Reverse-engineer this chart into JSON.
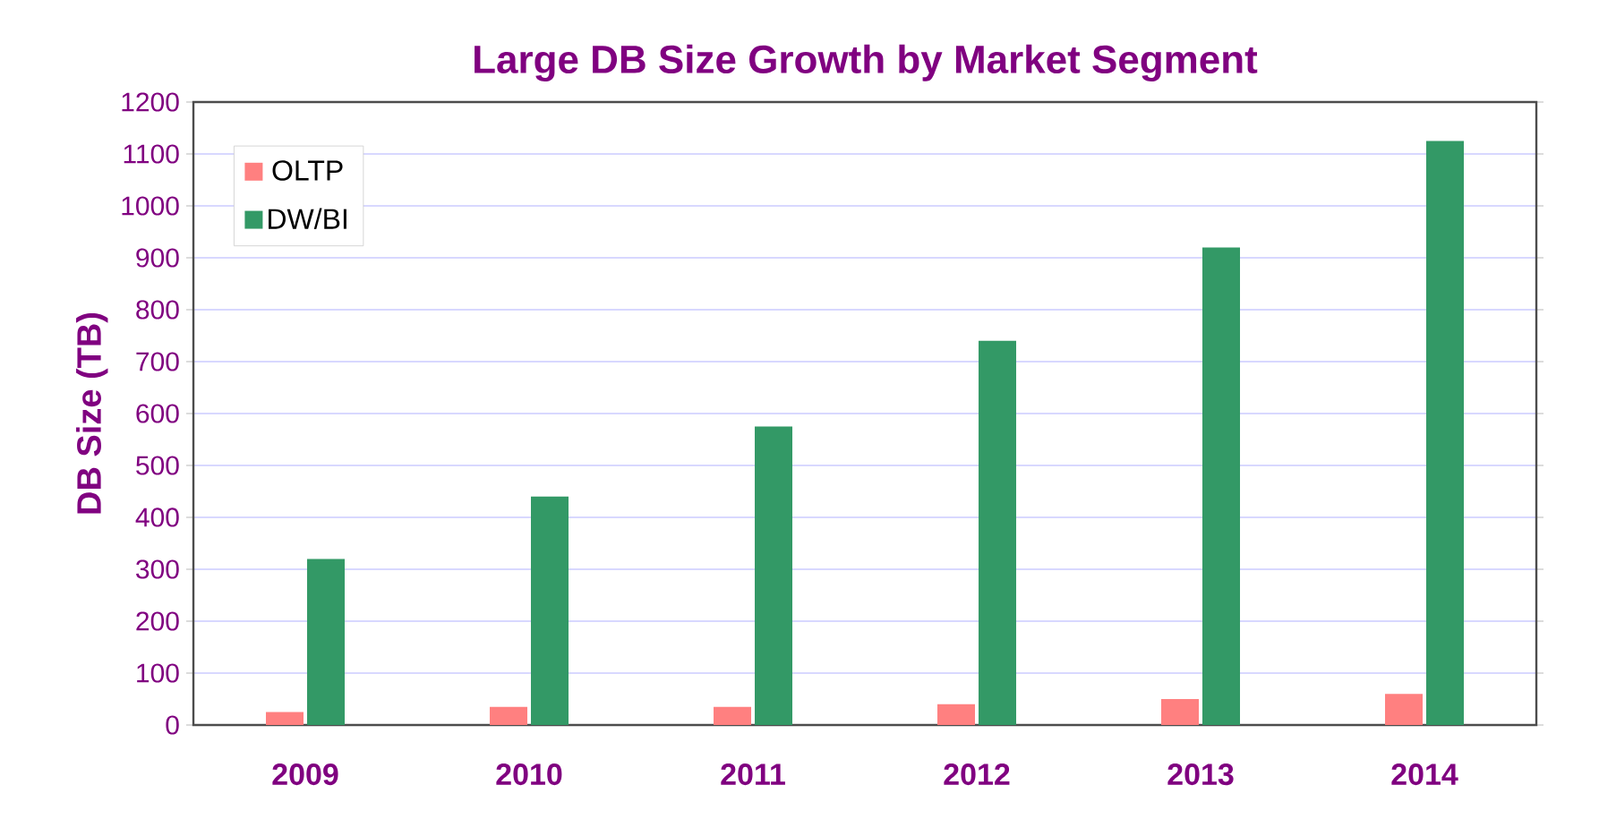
{
  "chart_data": {
    "type": "bar",
    "title": "Large DB Size Growth by Market Segment",
    "ylabel": "DB Size  (TB)",
    "categories": [
      "2009",
      "2010",
      "2011",
      "2012",
      "2013",
      "2014"
    ],
    "series": [
      {
        "name": "OLTP",
        "color": "#ff8080",
        "values": [
          25,
          35,
          35,
          40,
          50,
          60
        ]
      },
      {
        "name": "DW/BI",
        "color": "#339966",
        "values": [
          320,
          440,
          575,
          740,
          920,
          1125
        ]
      }
    ],
    "ylim": [
      0,
      1200
    ],
    "yticks": [
      0,
      100,
      200,
      300,
      400,
      500,
      600,
      700,
      800,
      900,
      1000,
      1100,
      1200
    ],
    "grid": "y",
    "legend": "top left"
  }
}
